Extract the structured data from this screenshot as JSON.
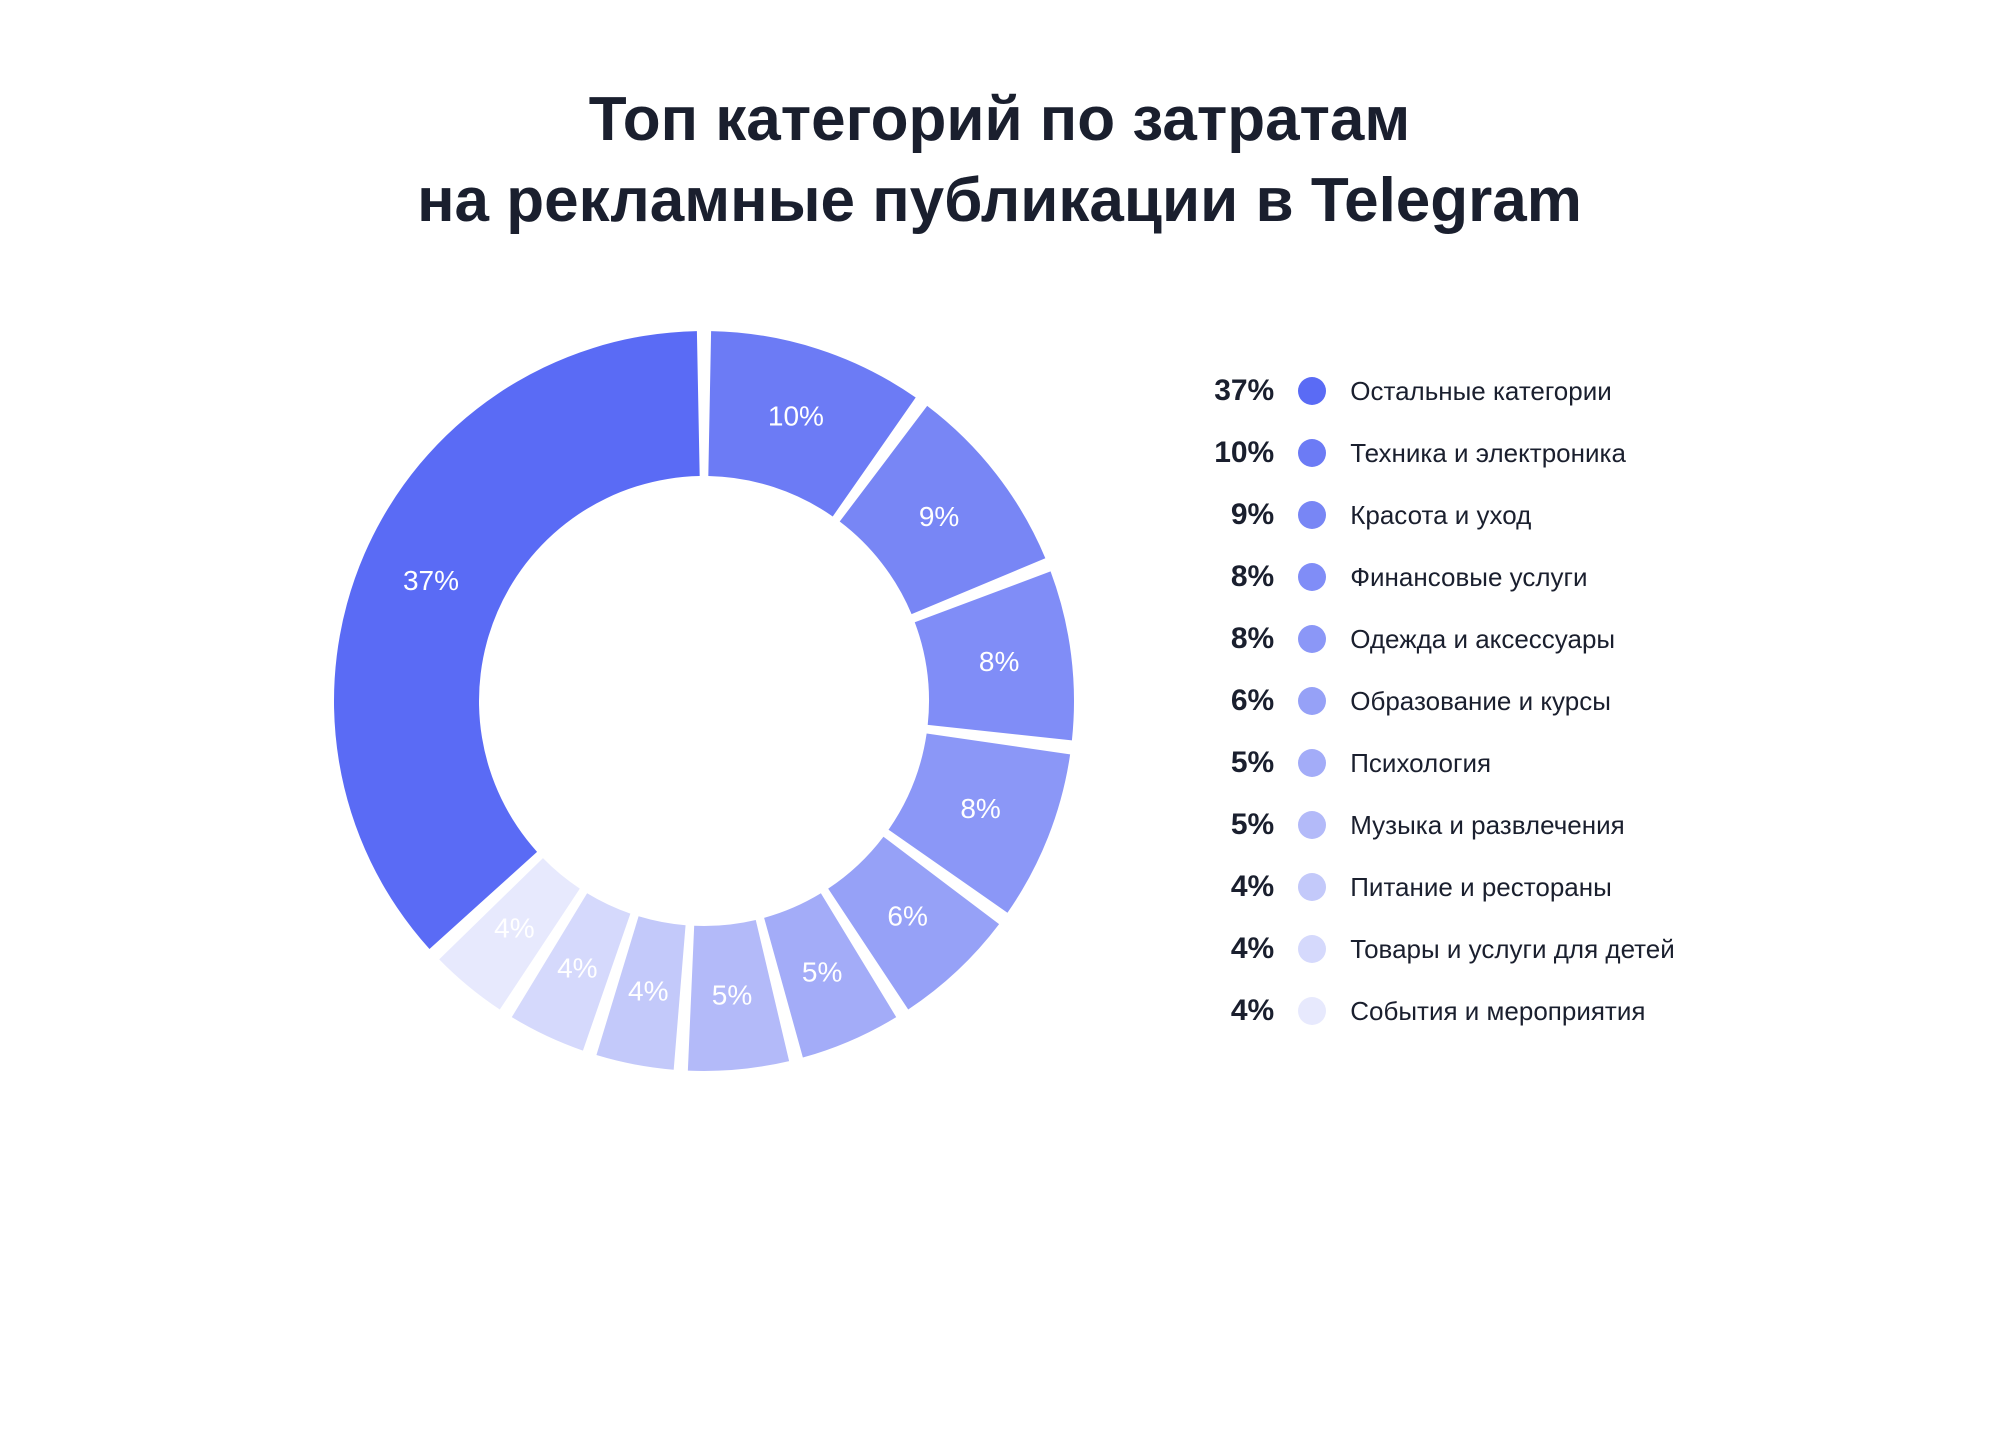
{
  "title_line1": "Топ категорий по затратам",
  "title_line2": "на рекламные публикации в Telegram",
  "chart": {
    "type": "donut",
    "outer_radius": 370,
    "inner_radius": 225,
    "gap_degrees": 2.2,
    "start_angle": -90,
    "background_color": "#ffffff",
    "label_color": "#ffffff",
    "label_fontsize": 28,
    "segments": [
      {
        "value": 37,
        "label": "37%",
        "color": "#5a6bf5",
        "name": "Остальные категории"
      },
      {
        "value": 10,
        "label": "10%",
        "color": "#6c7bf5",
        "name": "Техника и электроника"
      },
      {
        "value": 9,
        "label": "9%",
        "color": "#7886f5",
        "name": "Красота и уход"
      },
      {
        "value": 8,
        "label": "8%",
        "color": "#808df7",
        "name": "Финансовые услуги"
      },
      {
        "value": 8,
        "label": "8%",
        "color": "#8b97f7",
        "name": "Одежда и аксессуары"
      },
      {
        "value": 6,
        "label": "6%",
        "color": "#96a1f7",
        "name": "Образование и курсы"
      },
      {
        "value": 5,
        "label": "5%",
        "color": "#a3acf8",
        "name": "Психология"
      },
      {
        "value": 5,
        "label": "5%",
        "color": "#b3baf9",
        "name": "Музыка и развлечения"
      },
      {
        "value": 4,
        "label": "4%",
        "color": "#c3c9fa",
        "name": "Питание и рестораны"
      },
      {
        "value": 4,
        "label": "4%",
        "color": "#d5d9fc",
        "name": "Товары и услуги для детей"
      },
      {
        "value": 4,
        "label": "4%",
        "color": "#e7e9fd",
        "name": "События и мероприятия"
      }
    ]
  },
  "legend": {
    "percent_fontsize": 30,
    "label_fontsize": 26,
    "dot_size": 28,
    "text_color": "#1a1f2e"
  }
}
